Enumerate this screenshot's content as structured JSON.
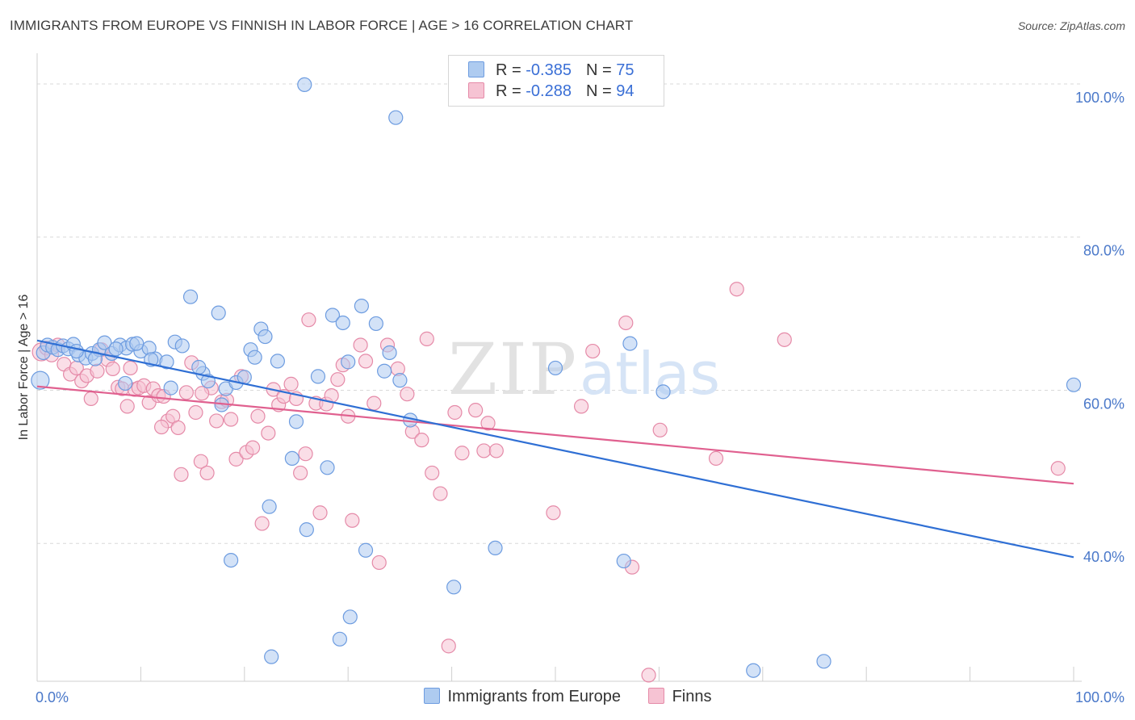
{
  "header": {
    "title": "IMMIGRANTS FROM EUROPE VS FINNISH IN LABOR FORCE | AGE > 16 CORRELATION CHART",
    "source": "Source: ZipAtlas.com"
  },
  "watermark": {
    "zip": "ZIP",
    "atlas": "atlas"
  },
  "legend": {
    "rows": [
      {
        "r_label": "R =",
        "r_value": "-0.385",
        "n_label": "N =",
        "n_value": "75"
      },
      {
        "r_label": "R =",
        "r_value": "-0.288",
        "n_label": "N =",
        "n_value": "94"
      }
    ]
  },
  "bottom_legend": {
    "series1": "Immigrants from Europe",
    "series2": "Finns"
  },
  "colors": {
    "blue_fill": "#aecbf0",
    "blue_stroke": "#6d9ce0",
    "blue_line": "#2f6fd4",
    "pink_fill": "#f6c3d3",
    "pink_stroke": "#e58aa8",
    "pink_line": "#e0608f",
    "grid": "#d9d9d9",
    "axis_text": "#4a78c9"
  },
  "chart_data": {
    "type": "scatter",
    "title": "IMMIGRANTS FROM EUROPE VS FINNISH IN LABOR FORCE | AGE > 16 CORRELATION CHART",
    "xlabel": "",
    "ylabel": "In Labor Force | Age > 16",
    "xlim": [
      0,
      100
    ],
    "ylim": [
      22,
      104
    ],
    "y_ticks": [
      40,
      60,
      80,
      100
    ],
    "y_tick_labels": [
      "40.0%",
      "60.0%",
      "80.0%",
      "100.0%"
    ],
    "x_tick_labels": [
      "0.0%",
      "100.0%"
    ],
    "series": [
      {
        "name": "Immigrants from Europe",
        "r": -0.385,
        "n": 75,
        "trend": {
          "x0": 0,
          "y0": 66.5,
          "x1": 100,
          "y1": 38.2
        },
        "points": [
          [
            0.3,
            61.3
          ],
          [
            0.6,
            64.9
          ],
          [
            1.0,
            65.9
          ],
          [
            1.5,
            65.6
          ],
          [
            2.0,
            65.3
          ],
          [
            2.5,
            65.8
          ],
          [
            3.0,
            65.4
          ],
          [
            3.5,
            66.0
          ],
          [
            4.0,
            64.6
          ],
          [
            4.7,
            64.2
          ],
          [
            5.3,
            64.8
          ],
          [
            6.0,
            65.3
          ],
          [
            6.5,
            66.2
          ],
          [
            7.2,
            64.8
          ],
          [
            8.0,
            65.9
          ],
          [
            8.6,
            65.5
          ],
          [
            9.2,
            66.0
          ],
          [
            10.0,
            65.1
          ],
          [
            10.8,
            65.5
          ],
          [
            11.4,
            64.1
          ],
          [
            12.5,
            63.7
          ],
          [
            13.3,
            66.3
          ],
          [
            14.0,
            65.8
          ],
          [
            14.8,
            72.2
          ],
          [
            16.0,
            62.2
          ],
          [
            16.5,
            61.2
          ],
          [
            17.5,
            70.1
          ],
          [
            18.2,
            60.2
          ],
          [
            19.2,
            61.0
          ],
          [
            20.0,
            61.7
          ],
          [
            20.6,
            65.3
          ],
          [
            21.0,
            64.3
          ],
          [
            21.6,
            68.0
          ],
          [
            22.0,
            67.0
          ],
          [
            23.2,
            63.8
          ],
          [
            24.6,
            51.1
          ],
          [
            25.0,
            55.9
          ],
          [
            26.0,
            41.8
          ],
          [
            27.1,
            61.8
          ],
          [
            28.0,
            49.9
          ],
          [
            28.5,
            69.8
          ],
          [
            29.5,
            68.8
          ],
          [
            30.0,
            63.7
          ],
          [
            31.3,
            71.0
          ],
          [
            32.7,
            68.7
          ],
          [
            33.5,
            62.5
          ],
          [
            34.0,
            64.9
          ],
          [
            35.0,
            61.3
          ],
          [
            36.0,
            56.1
          ],
          [
            17.8,
            58.1
          ],
          [
            8.5,
            60.9
          ],
          [
            12.9,
            60.3
          ],
          [
            22.4,
            44.8
          ],
          [
            25.8,
            99.9
          ],
          [
            34.6,
            95.6
          ],
          [
            18.7,
            37.8
          ],
          [
            29.2,
            27.5
          ],
          [
            30.2,
            30.4
          ],
          [
            31.7,
            39.1
          ],
          [
            40.2,
            34.3
          ],
          [
            44.2,
            39.4
          ],
          [
            50.0,
            62.9
          ],
          [
            56.6,
            37.7
          ],
          [
            57.2,
            66.1
          ],
          [
            60.4,
            59.8
          ],
          [
            69.1,
            23.4
          ],
          [
            75.9,
            24.6
          ],
          [
            100,
            60.7
          ],
          [
            22.6,
            25.2
          ],
          [
            3.8,
            65.1
          ],
          [
            5.6,
            64.1
          ],
          [
            7.6,
            65.4
          ],
          [
            9.6,
            66.1
          ],
          [
            11.0,
            64.0
          ],
          [
            15.6,
            63.0
          ]
        ]
      },
      {
        "name": "Finns",
        "r": -0.288,
        "n": 94,
        "trend": {
          "x0": 0,
          "y0": 60.5,
          "x1": 100,
          "y1": 47.8
        },
        "points": [
          [
            0.4,
            65.0
          ],
          [
            0.9,
            65.5
          ],
          [
            1.4,
            64.6
          ],
          [
            2.0,
            65.9
          ],
          [
            2.6,
            63.4
          ],
          [
            3.2,
            62.1
          ],
          [
            3.8,
            62.9
          ],
          [
            4.3,
            61.2
          ],
          [
            4.8,
            61.9
          ],
          [
            5.2,
            58.9
          ],
          [
            5.8,
            62.5
          ],
          [
            6.2,
            65.3
          ],
          [
            6.8,
            64.0
          ],
          [
            7.3,
            62.8
          ],
          [
            7.8,
            60.4
          ],
          [
            8.2,
            60.2
          ],
          [
            8.7,
            57.9
          ],
          [
            9.0,
            62.9
          ],
          [
            9.4,
            60.1
          ],
          [
            9.8,
            60.3
          ],
          [
            10.3,
            60.6
          ],
          [
            10.8,
            58.4
          ],
          [
            11.2,
            60.2
          ],
          [
            11.7,
            59.3
          ],
          [
            12.2,
            59.2
          ],
          [
            12.6,
            56.0
          ],
          [
            13.1,
            56.6
          ],
          [
            13.6,
            55.1
          ],
          [
            13.9,
            49.0
          ],
          [
            14.4,
            59.7
          ],
          [
            14.9,
            63.6
          ],
          [
            15.3,
            57.1
          ],
          [
            15.8,
            50.7
          ],
          [
            16.4,
            49.2
          ],
          [
            16.8,
            60.3
          ],
          [
            17.3,
            56.0
          ],
          [
            17.8,
            58.5
          ],
          [
            18.3,
            58.7
          ],
          [
            18.7,
            56.2
          ],
          [
            19.2,
            51.0
          ],
          [
            19.7,
            61.8
          ],
          [
            20.2,
            51.9
          ],
          [
            20.8,
            52.5
          ],
          [
            21.3,
            56.6
          ],
          [
            21.7,
            42.6
          ],
          [
            22.3,
            54.4
          ],
          [
            22.8,
            60.1
          ],
          [
            23.3,
            58.1
          ],
          [
            23.8,
            59.2
          ],
          [
            24.5,
            60.8
          ],
          [
            25.0,
            58.9
          ],
          [
            25.4,
            49.2
          ],
          [
            25.9,
            51.7
          ],
          [
            26.2,
            69.2
          ],
          [
            26.9,
            58.3
          ],
          [
            27.3,
            44.0
          ],
          [
            27.9,
            58.2
          ],
          [
            28.4,
            59.3
          ],
          [
            29.0,
            61.4
          ],
          [
            29.5,
            63.3
          ],
          [
            30.0,
            56.6
          ],
          [
            30.4,
            43.0
          ],
          [
            31.2,
            65.9
          ],
          [
            31.7,
            63.8
          ],
          [
            32.5,
            58.3
          ],
          [
            33.0,
            37.5
          ],
          [
            33.8,
            65.9
          ],
          [
            34.8,
            62.8
          ],
          [
            35.7,
            59.5
          ],
          [
            36.2,
            54.6
          ],
          [
            37.1,
            53.5
          ],
          [
            37.6,
            66.7
          ],
          [
            38.1,
            49.2
          ],
          [
            38.9,
            46.5
          ],
          [
            39.7,
            26.6
          ],
          [
            41.0,
            51.8
          ],
          [
            42.3,
            57.4
          ],
          [
            43.1,
            52.1
          ],
          [
            43.5,
            55.7
          ],
          [
            44.3,
            52.1
          ],
          [
            49.8,
            44.0
          ],
          [
            52.5,
            57.9
          ],
          [
            53.6,
            65.1
          ],
          [
            56.8,
            68.8
          ],
          [
            57.4,
            36.9
          ],
          [
            60.1,
            54.8
          ],
          [
            65.5,
            51.1
          ],
          [
            67.5,
            73.2
          ],
          [
            72.1,
            66.6
          ],
          [
            98.5,
            49.8
          ],
          [
            59.0,
            22.8
          ],
          [
            40.3,
            57.1
          ],
          [
            15.9,
            59.6
          ],
          [
            12.0,
            55.2
          ]
        ]
      }
    ]
  }
}
